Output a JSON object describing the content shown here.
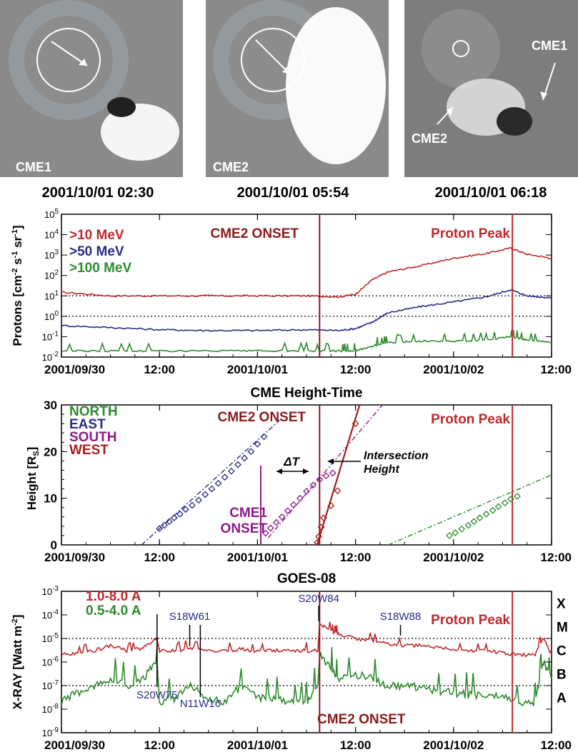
{
  "images": [
    {
      "label": "CME1",
      "caption": "2001/10/01 02:30"
    },
    {
      "label": "CME2",
      "caption": "2001/10/01 05:54"
    },
    {
      "labels": [
        "CME1",
        "CME2"
      ],
      "caption": "2001/10/01 06:18"
    }
  ],
  "x_ticks": [
    "2001/09/30",
    "12:00",
    "2001/10/01",
    "12:00",
    "2001/10/02",
    "12:00"
  ],
  "markers": {
    "cme2_onset": {
      "label": "CME2 ONSET",
      "t_hours": 31.6
    },
    "cme1_onset": {
      "label_line1": "CME1",
      "label_line2": "ONSET",
      "t_hours": 24.4
    },
    "proton_peak": {
      "label": "Proton Peak",
      "t_hours": 55.2
    }
  },
  "chart_data": [
    {
      "type": "line",
      "ylabel": "Protons [cm^-2 s^-1 sr^-1]",
      "y_scale": "log",
      "ylim": [
        0.01,
        100000
      ],
      "y_tick_labels": [
        "10^-2",
        "10^-1",
        "10^0",
        "10^1",
        "10^2",
        "10^3",
        "10^4",
        "10^5"
      ],
      "x_unit": "hours since 2001/09/30 00:00",
      "xlim": [
        0,
        60
      ],
      "series": [
        {
          "name": ">10 MeV",
          "color": "#c0282d",
          "x": [
            0,
            6,
            12,
            18,
            24,
            30,
            34,
            36,
            38,
            40,
            44,
            48,
            52,
            55,
            57,
            60
          ],
          "y": [
            15,
            10,
            10,
            10,
            10,
            10,
            9,
            12,
            60,
            150,
            300,
            700,
            1200,
            2200,
            1100,
            700
          ]
        },
        {
          "name": ">50 MeV",
          "color": "#2b2b86",
          "x": [
            0,
            6,
            12,
            18,
            24,
            30,
            34,
            36,
            38,
            40,
            44,
            48,
            52,
            55,
            57,
            60
          ],
          "y": [
            0.35,
            0.28,
            0.22,
            0.2,
            0.2,
            0.22,
            0.2,
            0.25,
            0.5,
            1.5,
            3,
            5,
            9,
            20,
            10,
            8
          ]
        },
        {
          "name": ">100 MeV",
          "color": "#2e8b2e",
          "x": [
            0,
            6,
            12,
            18,
            24,
            30,
            34,
            36,
            38,
            40,
            44,
            48,
            52,
            55,
            57,
            60
          ],
          "y": [
            0.02,
            0.02,
            0.02,
            0.02,
            0.02,
            0.02,
            0.02,
            0.02,
            0.035,
            0.05,
            0.06,
            0.06,
            0.07,
            0.1,
            0.07,
            0.05
          ]
        }
      ],
      "reference_lines_y": [
        1,
        10
      ]
    },
    {
      "type": "scatter",
      "title": "CME Height-Time",
      "ylabel": "Height [R_s]",
      "ylim": [
        0,
        30
      ],
      "y_ticks": [
        0,
        10,
        20,
        30
      ],
      "xlim": [
        0,
        60
      ],
      "series": [
        {
          "name": "NORTH",
          "color": "#2e8b2e",
          "points": [
            [
              47.5,
              2.0
            ],
            [
              48.2,
              2.6
            ],
            [
              49.0,
              3.4
            ],
            [
              49.8,
              4.2
            ],
            [
              50.5,
              5.0
            ],
            [
              51.2,
              5.8
            ],
            [
              52.0,
              6.6
            ],
            [
              52.8,
              7.4
            ],
            [
              53.5,
              8.2
            ],
            [
              54.3,
              9.0
            ],
            [
              55.0,
              9.8
            ],
            [
              55.8,
              10.4
            ]
          ],
          "fit": [
            [
              40,
              0
            ],
            [
              60,
              15
            ]
          ]
        },
        {
          "name": "EAST",
          "color": "#2b2b86",
          "points": [
            [
              12.0,
              3.5
            ],
            [
              12.6,
              4.2
            ],
            [
              13.2,
              5.0
            ],
            [
              13.8,
              5.8
            ],
            [
              14.5,
              6.6
            ],
            [
              15.2,
              7.6
            ],
            [
              16.0,
              8.5
            ],
            [
              16.8,
              9.6
            ],
            [
              17.6,
              10.8
            ],
            [
              18.4,
              12.0
            ],
            [
              19.2,
              13.2
            ],
            [
              20.0,
              14.5
            ],
            [
              20.8,
              15.8
            ],
            [
              21.6,
              17.2
            ],
            [
              22.4,
              18.6
            ],
            [
              23.2,
              20.0
            ],
            [
              24.0,
              21.6
            ],
            [
              24.8,
              23.2
            ]
          ],
          "fit": [
            [
              9.8,
              0
            ],
            [
              26.7,
              26.7
            ]
          ]
        },
        {
          "name": "SOUTH",
          "color": "#8b1a8b",
          "points": [
            [
              25.0,
              2.5
            ],
            [
              25.6,
              3.6
            ],
            [
              26.3,
              4.8
            ],
            [
              27.0,
              6.0
            ],
            [
              27.7,
              7.3
            ],
            [
              28.4,
              8.6
            ],
            [
              29.2,
              10.0
            ],
            [
              30.0,
              11.5
            ],
            [
              30.8,
              12.8
            ],
            [
              31.6,
              14.0
            ],
            [
              32.4,
              14.8
            ],
            [
              33.2,
              15.4
            ]
          ],
          "fit": [
            [
              25.3,
              1.5
            ],
            [
              39.3,
              30
            ]
          ]
        },
        {
          "name": "WEST",
          "color": "#a61c1c",
          "points": [
            [
              31.3,
              0.5
            ],
            [
              31.5,
              1.8
            ],
            [
              31.8,
              3.8
            ],
            [
              32.1,
              5.8
            ],
            [
              33.0,
              8.4
            ],
            [
              33.8,
              11.6
            ],
            [
              36.0,
              26.0
            ]
          ],
          "fit": [
            [
              31.3,
              0
            ],
            [
              36.5,
              30
            ]
          ]
        }
      ],
      "annotations": {
        "delta_t": "ΔT",
        "intersection_line1": "Intersection",
        "intersection_line2": "Height"
      }
    },
    {
      "type": "line",
      "title": "GOES-08",
      "ylabel": "X-RAY [Watt m^-2]",
      "y_scale": "log",
      "ylim": [
        1e-09,
        0.001
      ],
      "y_tick_labels": [
        "10^-9",
        "10^-8",
        "10^-7",
        "10^-6",
        "10^-5",
        "10^-4",
        "10^-3"
      ],
      "class_letters": [
        "X",
        "M",
        "C",
        "B",
        "A"
      ],
      "series": [
        {
          "name": "1.0-8.0 A",
          "color": "#c0282d",
          "x": [
            0,
            2,
            4,
            6,
            8,
            10,
            11.7,
            12,
            14,
            16,
            18,
            20,
            22,
            24,
            26,
            28,
            30,
            31.4,
            31.6,
            33,
            34,
            36,
            38,
            40,
            42,
            44,
            46,
            48,
            50,
            52,
            54,
            56,
            58,
            59,
            60
          ],
          "y": [
            2e-06,
            2.5e-06,
            3e-06,
            5e-06,
            3e-06,
            4e-06,
            1e-05,
            3e-06,
            3e-06,
            4e-06,
            3e-06,
            3e-06,
            3.5e-06,
            3e-06,
            3e-06,
            3e-06,
            3e-06,
            3e-06,
            4e-05,
            2e-05,
            1.5e-05,
            1e-05,
            8e-06,
            6e-06,
            5e-06,
            5e-06,
            4e-06,
            3.5e-06,
            3e-06,
            3e-06,
            2.5e-06,
            2e-06,
            2e-06,
            1e-05,
            2e-06
          ]
        },
        {
          "name": "0.5-4.0 A",
          "color": "#2e8b2e",
          "x": [
            0,
            2,
            4,
            6,
            8,
            10,
            11.7,
            12,
            14,
            16,
            18,
            20,
            22,
            24,
            26,
            28,
            30,
            31.4,
            31.6,
            33,
            34,
            36,
            38,
            40,
            42,
            44,
            46,
            48,
            50,
            52,
            54,
            56,
            58,
            59,
            60
          ],
          "y": [
            2e-08,
            5e-08,
            1e-07,
            2e-07,
            1e-07,
            2e-07,
            1e-06,
            2e-08,
            3e-08,
            1e-07,
            3e-08,
            2e-08,
            1e-07,
            3e-08,
            3e-08,
            2e-08,
            2e-08,
            1e-07,
            2e-06,
            6e-07,
            2e-07,
            3e-07,
            2e-07,
            1e-07,
            1e-07,
            8e-08,
            6e-08,
            5e-08,
            4e-08,
            4e-08,
            3e-08,
            2e-08,
            2e-08,
            1e-06,
            2e-07
          ]
        }
      ],
      "reference_lines_y": [
        1e-07,
        1e-05
      ],
      "flare_labels": [
        {
          "text": "S20W75",
          "t_hours": 11.7
        },
        {
          "text": "S18W61",
          "t_hours": 15.7
        },
        {
          "text": "N11W16",
          "t_hours": 17.0
        },
        {
          "text": "S20W84",
          "t_hours": 31.5
        },
        {
          "text": "S18W88",
          "t_hours": 41.5
        }
      ]
    }
  ]
}
